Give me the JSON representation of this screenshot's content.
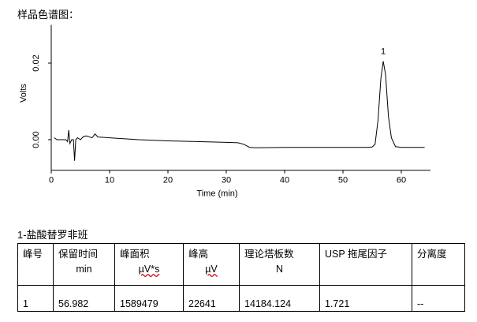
{
  "heading": "样品色谱图：",
  "chart_data": {
    "type": "line",
    "x_label": "Time (min)",
    "y_label": "Volts",
    "annotation": "1",
    "x": [
      0.5,
      1,
      1.5,
      2,
      2.5,
      2.8,
      3,
      3.2,
      3.5,
      3.8,
      4,
      4.2,
      4.5,
      5,
      5.5,
      6,
      7,
      7.5,
      8,
      10,
      15,
      20,
      25,
      30,
      32,
      33,
      34,
      35,
      40,
      45,
      50,
      54,
      55,
      55.5,
      56,
      56.5,
      56.9,
      57.3,
      57.8,
      58.3,
      59,
      60,
      64
    ],
    "values": [
      0.0005,
      0,
      0,
      0,
      0,
      -0.0005,
      0.0025,
      -0.001,
      0,
      0,
      -0.0055,
      0,
      0.0005,
      0,
      0.0008,
      0.001,
      0.0005,
      0.0015,
      0.0007,
      0.0005,
      0,
      -0.0003,
      -0.0005,
      -0.0007,
      -0.0008,
      -0.0012,
      -0.002,
      -0.0021,
      -0.002,
      -0.002,
      -0.002,
      -0.002,
      -0.0019,
      -0.0012,
      0.005,
      0.016,
      0.0205,
      0.017,
      0.006,
      0.0005,
      -0.0018,
      -0.002,
      -0.002
    ],
    "color": "#000000",
    "xlim": [
      0,
      65
    ],
    "xticks": [
      0,
      10,
      20,
      30,
      40,
      50,
      60
    ],
    "ylim": [
      -0.008,
      0.03
    ],
    "yticks": [
      {
        "value": 0,
        "label": "0.00"
      },
      {
        "value": 0.02,
        "label": "0.02"
      }
    ]
  },
  "table": {
    "title": "1-盐酸替罗非班",
    "header": [
      [
        "峰号"
      ],
      [
        "保留时间",
        "min"
      ],
      [
        "峰面积",
        "µV*s"
      ],
      [
        "峰高",
        "µV"
      ],
      [
        "理论塔板数",
        "N"
      ],
      [
        "USP 拖尾因子"
      ],
      [
        "分离度"
      ]
    ],
    "rows": [
      [
        "1",
        "56.982",
        "1589479",
        "22641",
        "14184.124",
        "1.721",
        "--"
      ]
    ]
  }
}
